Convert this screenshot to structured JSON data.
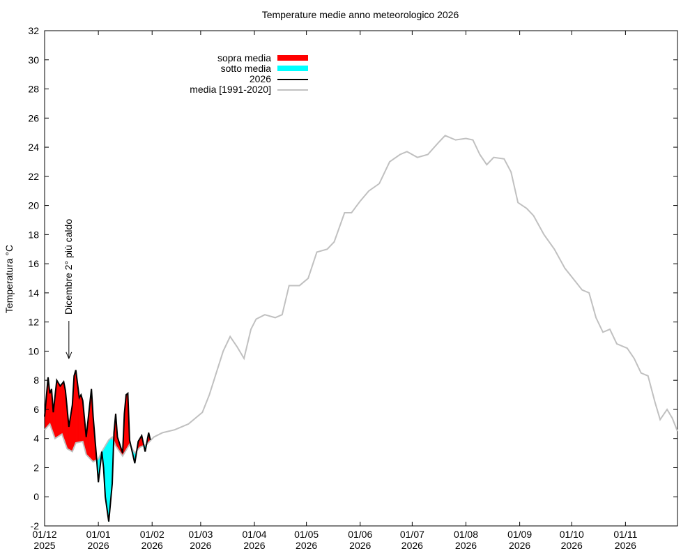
{
  "chart_data": {
    "type": "area",
    "title": "Temperature medie anno meteorologico 2026",
    "xlabel": "",
    "ylabel": "Temperatura °C",
    "ylim": [
      -2,
      32
    ],
    "yticks": [
      -2,
      0,
      2,
      4,
      6,
      8,
      10,
      12,
      14,
      16,
      18,
      20,
      22,
      24,
      26,
      28,
      30,
      32
    ],
    "x_unit": "days since 01/12/2025",
    "xlim": [
      0,
      365
    ],
    "xticks": [
      {
        "day": 0,
        "label1": "01/12",
        "label2": "2025"
      },
      {
        "day": 31,
        "label1": "01/01",
        "label2": "2026"
      },
      {
        "day": 62,
        "label1": "01/02",
        "label2": "2026"
      },
      {
        "day": 90,
        "label1": "01/03",
        "label2": "2026"
      },
      {
        "day": 121,
        "label1": "01/04",
        "label2": "2026"
      },
      {
        "day": 151,
        "label1": "01/05",
        "label2": "2026"
      },
      {
        "day": 182,
        "label1": "01/06",
        "label2": "2026"
      },
      {
        "day": 212,
        "label1": "01/07",
        "label2": "2026"
      },
      {
        "day": 243,
        "label1": "01/08",
        "label2": "2026"
      },
      {
        "day": 274,
        "label1": "01/09",
        "label2": "2026"
      },
      {
        "day": 304,
        "label1": "01/10",
        "label2": "2026"
      },
      {
        "day": 335,
        "label1": "01/11",
        "label2": "2026"
      }
    ],
    "legend_position": "top-left",
    "legend": [
      {
        "label": "sopra media",
        "color": "#ff0000",
        "kind": "fill"
      },
      {
        "label": "sotto media",
        "color": "#00ffff",
        "kind": "fill"
      },
      {
        "label": "2026",
        "color": "#000000",
        "kind": "line"
      },
      {
        "label": "media [1991-2020]",
        "color": "#c0c0c0",
        "kind": "line"
      }
    ],
    "annotation": {
      "text": "Dicembre 2° più caldo",
      "day": 14,
      "value": 9.5
    },
    "series": [
      {
        "name": "2026",
        "color": "#000000",
        "points": [
          [
            0,
            5.5
          ],
          [
            2,
            8.2
          ],
          [
            3,
            7.1
          ],
          [
            4,
            7.4
          ],
          [
            5,
            5.8
          ],
          [
            7,
            8.0
          ],
          [
            9,
            7.6
          ],
          [
            11,
            7.9
          ],
          [
            12,
            7.3
          ],
          [
            14,
            4.8
          ],
          [
            16,
            6.3
          ],
          [
            17,
            8.3
          ],
          [
            18,
            8.7
          ],
          [
            20,
            6.8
          ],
          [
            21,
            7.0
          ],
          [
            22,
            6.6
          ],
          [
            24,
            4.1
          ],
          [
            25,
            5.2
          ],
          [
            27,
            7.4
          ],
          [
            28,
            5.5
          ],
          [
            30,
            2.6
          ],
          [
            31,
            1.0
          ],
          [
            33,
            3.1
          ],
          [
            34,
            2.0
          ],
          [
            35,
            0.0
          ],
          [
            37,
            -1.7
          ],
          [
            39,
            0.9
          ],
          [
            40,
            4.4
          ],
          [
            41,
            5.7
          ],
          [
            42,
            4.1
          ],
          [
            45,
            3.0
          ],
          [
            46,
            5.7
          ],
          [
            47,
            7.0
          ],
          [
            48,
            7.1
          ],
          [
            49,
            3.9
          ],
          [
            52,
            2.3
          ],
          [
            54,
            3.8
          ],
          [
            56,
            4.2
          ],
          [
            58,
            3.1
          ],
          [
            60,
            4.4
          ],
          [
            61,
            3.9
          ]
        ]
      },
      {
        "name": "media [1991-2020]",
        "color": "#c0c0c0",
        "points": [
          [
            0,
            4.6
          ],
          [
            3,
            5.0
          ],
          [
            6,
            4.0
          ],
          [
            10,
            4.3
          ],
          [
            13,
            3.3
          ],
          [
            16,
            3.1
          ],
          [
            18,
            3.7
          ],
          [
            22,
            3.8
          ],
          [
            24,
            2.9
          ],
          [
            28,
            2.4
          ],
          [
            31,
            2.6
          ],
          [
            33,
            3.1
          ],
          [
            37,
            3.9
          ],
          [
            39,
            4.1
          ],
          [
            41,
            3.5
          ],
          [
            45,
            2.8
          ],
          [
            49,
            3.6
          ],
          [
            52,
            3.0
          ],
          [
            55,
            3.4
          ],
          [
            59,
            3.6
          ],
          [
            63,
            4.1
          ],
          [
            68,
            4.4
          ],
          [
            75,
            4.6
          ],
          [
            83,
            5.0
          ],
          [
            91,
            5.8
          ],
          [
            95,
            7.0
          ],
          [
            99,
            8.5
          ],
          [
            103,
            10
          ],
          [
            107,
            11
          ],
          [
            111,
            10.3
          ],
          [
            115,
            9.5
          ],
          [
            119,
            11.5
          ],
          [
            122,
            12.2
          ],
          [
            127,
            12.5
          ],
          [
            133,
            12.3
          ],
          [
            137,
            12.5
          ],
          [
            141,
            14.5
          ],
          [
            147,
            14.5
          ],
          [
            152,
            15
          ],
          [
            157,
            16.8
          ],
          [
            163,
            17
          ],
          [
            167,
            17.5
          ],
          [
            173,
            19.5
          ],
          [
            177,
            19.5
          ],
          [
            182,
            20.3
          ],
          [
            187,
            21
          ],
          [
            193,
            21.5
          ],
          [
            199,
            23
          ],
          [
            205,
            23.5
          ],
          [
            209,
            23.7
          ],
          [
            215,
            23.3
          ],
          [
            221,
            23.5
          ],
          [
            227,
            24.3
          ],
          [
            231,
            24.8
          ],
          [
            237,
            24.5
          ],
          [
            243,
            24.6
          ],
          [
            247,
            24.5
          ],
          [
            251,
            23.5
          ],
          [
            255,
            22.8
          ],
          [
            259,
            23.3
          ],
          [
            265,
            23.2
          ],
          [
            269,
            22.3
          ],
          [
            273,
            20.2
          ],
          [
            278,
            19.8
          ],
          [
            282,
            19.3
          ],
          [
            288,
            18
          ],
          [
            294,
            17
          ],
          [
            300,
            15.7
          ],
          [
            306,
            14.8
          ],
          [
            310,
            14.2
          ],
          [
            314,
            14
          ],
          [
            318,
            12.3
          ],
          [
            322,
            11.3
          ],
          [
            326,
            11.5
          ],
          [
            330,
            10.5
          ],
          [
            336,
            10.2
          ],
          [
            340,
            9.5
          ],
          [
            344,
            8.5
          ],
          [
            348,
            8.3
          ],
          [
            352,
            6.5
          ],
          [
            355,
            5.3
          ],
          [
            359,
            6.0
          ],
          [
            362,
            5.4
          ],
          [
            365,
            4.5
          ]
        ]
      }
    ]
  }
}
